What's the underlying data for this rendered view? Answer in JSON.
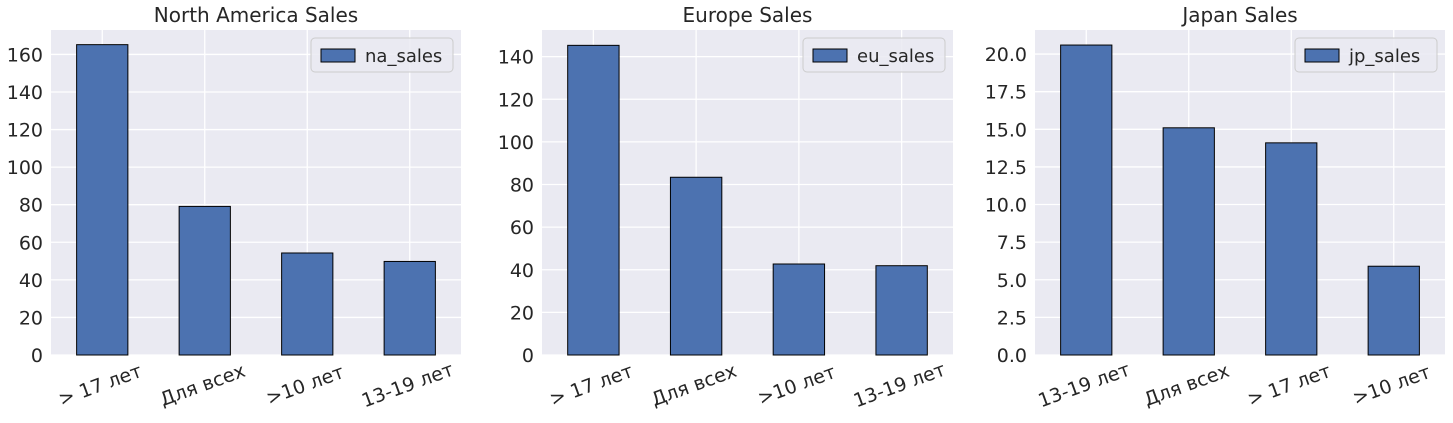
{
  "style": {
    "panel_bg": "#eaeaf2",
    "bar_fill": "#4c72b0",
    "bar_edge": "#000000",
    "grid": "#ffffff"
  },
  "chart_data": [
    {
      "type": "bar",
      "title": "North America Sales",
      "categories": [
        "> 17 лет",
        "Для всех",
        ">10 лет",
        "13-19 лет"
      ],
      "series": [
        {
          "name": "na_sales",
          "values": [
            165.2,
            79.1,
            54.3,
            49.8
          ]
        }
      ],
      "ylim": [
        0,
        173
      ],
      "yticks": [
        0,
        20,
        40,
        60,
        80,
        100,
        120,
        140,
        160
      ],
      "ytick_labels": [
        "0",
        "20",
        "40",
        "60",
        "80",
        "100",
        "120",
        "140",
        "160"
      ],
      "grid": true,
      "legend": "top-right"
    },
    {
      "type": "bar",
      "title": "Europe Sales",
      "categories": [
        "> 17 лет",
        "Для всех",
        ">10 лет",
        "13-19 лет"
      ],
      "series": [
        {
          "name": "eu_sales",
          "values": [
            145.3,
            83.4,
            42.7,
            41.9
          ]
        }
      ],
      "ylim": [
        0,
        152.5
      ],
      "yticks": [
        0,
        20,
        40,
        60,
        80,
        100,
        120,
        140
      ],
      "ytick_labels": [
        "0",
        "20",
        "40",
        "60",
        "80",
        "100",
        "120",
        "140"
      ],
      "grid": true,
      "legend": "top-right"
    },
    {
      "type": "bar",
      "title": "Japan Sales",
      "categories": [
        "13-19 лет",
        "Для всех",
        "> 17 лет",
        ">10 лет"
      ],
      "series": [
        {
          "name": "jp_sales",
          "values": [
            20.6,
            15.1,
            14.1,
            5.9
          ]
        }
      ],
      "ylim": [
        0,
        21.6
      ],
      "yticks": [
        0,
        2.5,
        5,
        7.5,
        10,
        12.5,
        15,
        17.5,
        20
      ],
      "ytick_labels": [
        "0.0",
        "2.5",
        "5.0",
        "7.5",
        "10.0",
        "12.5",
        "15.0",
        "17.5",
        "20.0"
      ],
      "grid": true,
      "legend": "top-right"
    }
  ]
}
